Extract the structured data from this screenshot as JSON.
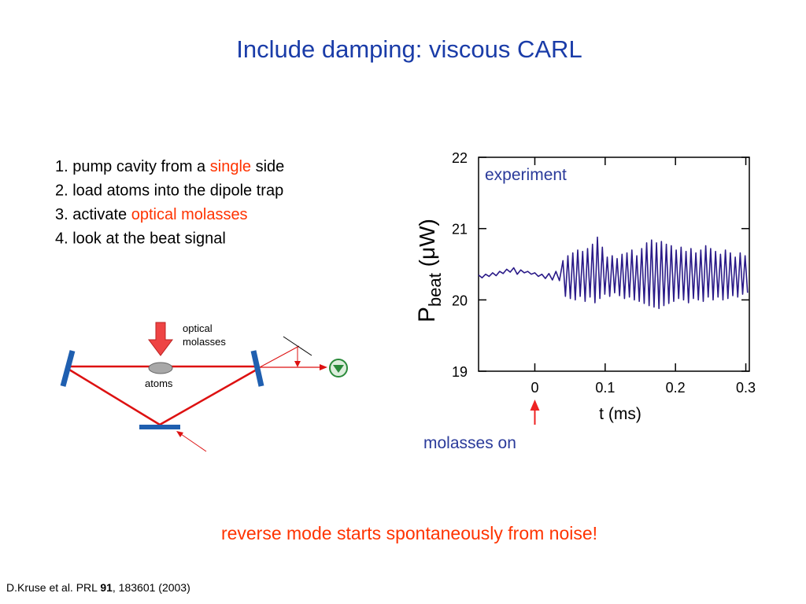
{
  "title": "Include damping: viscous CARL",
  "steps": [
    [
      {
        "text": "1. pump cavity from a "
      },
      {
        "text": "single",
        "color": "#ff3300"
      },
      {
        "text": " side"
      }
    ],
    [
      {
        "text": "2. load atoms into the dipole trap"
      }
    ],
    [
      {
        "text": "3. activate "
      },
      {
        "text": "optical molasses",
        "color": "#ff3300"
      }
    ],
    [
      {
        "text": "4. look at the beat signal"
      }
    ]
  ],
  "diagram": {
    "molasses_label": [
      "optical",
      "molasses"
    ],
    "atoms_label": "atoms"
  },
  "chart_data": {
    "type": "line",
    "ylabel": {
      "main": "P",
      "sub": "beat",
      "unit": " (μW)"
    },
    "xlabel": "t (ms)",
    "annotations": {
      "curve": "experiment",
      "marker": "molasses on"
    },
    "marker_x": 0,
    "xlim": [
      -0.08,
      0.305
    ],
    "ylim": [
      19,
      22
    ],
    "xticks": [
      0,
      0.1,
      0.2,
      0.3
    ],
    "yticks": [
      19,
      20,
      21,
      22
    ],
    "series": [
      {
        "color": "#2a1a88",
        "x": [
          -0.08,
          -0.075,
          -0.07,
          -0.065,
          -0.06,
          -0.055,
          -0.05,
          -0.045,
          -0.04,
          -0.035,
          -0.03,
          -0.025,
          -0.02,
          -0.015,
          -0.01,
          -0.005,
          0,
          0.005,
          0.01,
          0.015,
          0.02,
          0.025,
          0.03,
          0.035,
          0.04,
          0.0435,
          0.047,
          0.0505,
          0.054,
          0.0575,
          0.061,
          0.0645,
          0.068,
          0.0715,
          0.075,
          0.0785,
          0.082,
          0.0855,
          0.089,
          0.0925,
          0.096,
          0.0995,
          0.103,
          0.1065,
          0.11,
          0.1135,
          0.117,
          0.1205,
          0.124,
          0.1275,
          0.131,
          0.1345,
          0.138,
          0.1415,
          0.145,
          0.1485,
          0.152,
          0.1555,
          0.159,
          0.1625,
          0.166,
          0.1695,
          0.173,
          0.1765,
          0.18,
          0.1835,
          0.187,
          0.1905,
          0.194,
          0.1975,
          0.201,
          0.2045,
          0.208,
          0.2115,
          0.215,
          0.2185,
          0.222,
          0.2255,
          0.229,
          0.2325,
          0.236,
          0.2395,
          0.243,
          0.2465,
          0.25,
          0.2535,
          0.257,
          0.2605,
          0.264,
          0.2675,
          0.271,
          0.2745,
          0.278,
          0.2815,
          0.285,
          0.2885,
          0.292,
          0.2955,
          0.299,
          0.3025
        ],
        "values": [
          20.35,
          20.31,
          20.36,
          20.33,
          20.38,
          20.34,
          20.4,
          20.37,
          20.43,
          20.39,
          20.45,
          20.36,
          20.42,
          20.38,
          20.4,
          20.36,
          20.38,
          20.33,
          20.36,
          20.3,
          20.37,
          20.28,
          20.4,
          20.27,
          20.55,
          20.05,
          20.62,
          20.02,
          20.66,
          20.0,
          20.7,
          20.05,
          20.68,
          19.98,
          20.72,
          20.04,
          20.78,
          19.96,
          20.88,
          20.02,
          20.74,
          20.08,
          20.6,
          20.05,
          20.62,
          20.1,
          20.58,
          20.06,
          20.64,
          20.02,
          20.66,
          20.04,
          20.7,
          20.0,
          20.62,
          19.98,
          20.72,
          19.95,
          20.8,
          19.92,
          20.84,
          19.9,
          20.8,
          19.88,
          20.82,
          19.92,
          20.78,
          19.95,
          20.76,
          19.98,
          20.7,
          20.02,
          20.74,
          20.0,
          20.68,
          19.96,
          20.72,
          20.02,
          20.66,
          20.0,
          20.7,
          19.98,
          20.76,
          20.04,
          20.72,
          20.0,
          20.68,
          20.04,
          20.64,
          20.0,
          20.7,
          20.02,
          20.66,
          20.06,
          20.6,
          20.04,
          20.66,
          20.08,
          20.62,
          20.1
        ]
      }
    ]
  },
  "conclusion": "reverse mode starts spontaneously from noise!",
  "citation": [
    {
      "text": "D.Kruse et al. PRL "
    },
    {
      "text": "91",
      "bold": true
    },
    {
      "text": ", 183601 (2003)"
    }
  ]
}
